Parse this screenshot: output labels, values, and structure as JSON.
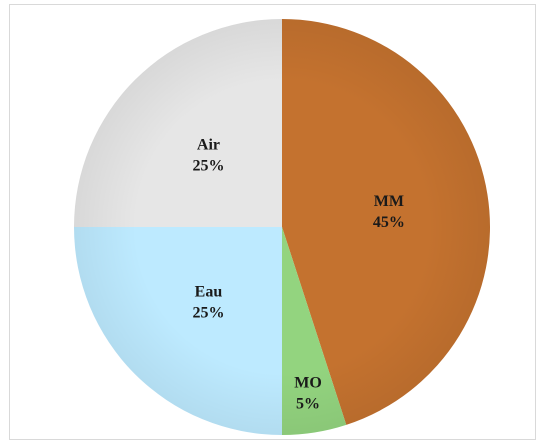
{
  "chart_data": {
    "type": "pie",
    "title": "",
    "legend": "none",
    "slices": [
      {
        "label": "MM",
        "value": 45,
        "display": "45%",
        "color": "#c4722f"
      },
      {
        "label": "MO",
        "value": 5,
        "display": "5%",
        "color": "#93d47f"
      },
      {
        "label": "Eau",
        "value": 25,
        "display": "25%",
        "color": "#bdeaff"
      },
      {
        "label": "Air",
        "value": 25,
        "display": "25%",
        "color": "#e6e6e6"
      }
    ]
  }
}
